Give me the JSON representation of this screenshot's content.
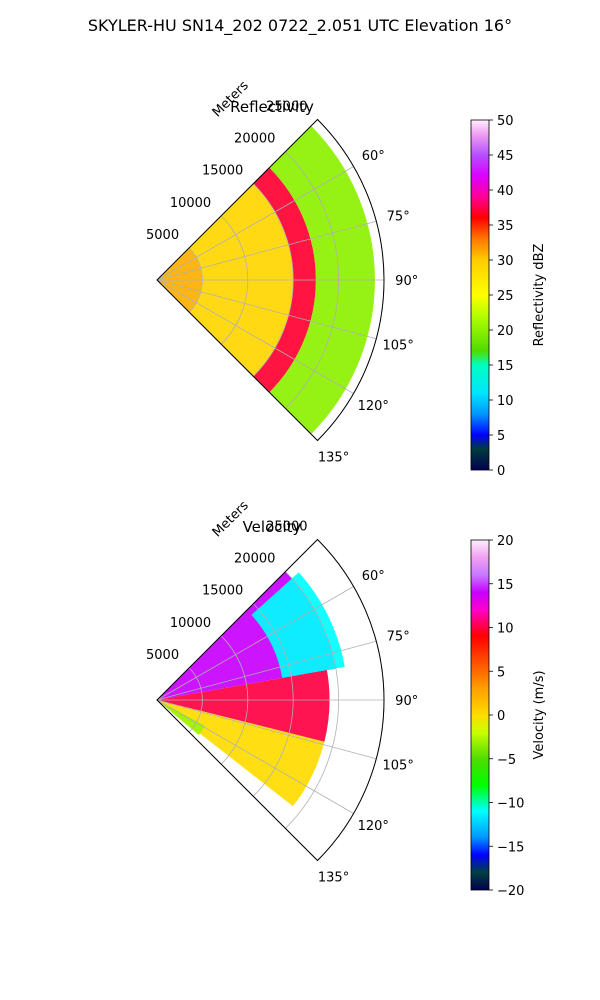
{
  "figure": {
    "title": "SKYLER-HU  SN14_202  0722_2.051 UTC Elevation 16°"
  },
  "chart_data": [
    {
      "type": "heatmap",
      "subtype": "polar-sector",
      "title": "Reflectivity",
      "range_axis_label": "Meters",
      "range_ticks": [
        5000,
        10000,
        15000,
        20000,
        25000
      ],
      "range_max": 25000,
      "azimuth_ticks": [
        "60°",
        "75°",
        "90°",
        "105°",
        "120°",
        "135°"
      ],
      "azimuth_tick_values": [
        60,
        75,
        90,
        105,
        120,
        135
      ],
      "azimuth_range": [
        45,
        135
      ],
      "grid": true,
      "colorbar": {
        "label": "Reflectivity dBZ",
        "min": 0,
        "max": 50,
        "ticks": [
          "0",
          "5",
          "10",
          "15",
          "20",
          "25",
          "30",
          "35",
          "40",
          "45",
          "50"
        ],
        "tick_values": [
          0,
          5,
          10,
          15,
          20,
          25,
          30,
          35,
          40,
          45,
          50
        ],
        "stops": [
          {
            "v": 0,
            "c": "#000050"
          },
          {
            "v": 3,
            "c": "#003c3c"
          },
          {
            "v": 5,
            "c": "#0000ff"
          },
          {
            "v": 8,
            "c": "#0096ff"
          },
          {
            "v": 11,
            "c": "#00e6ff"
          },
          {
            "v": 15,
            "c": "#00ffc0"
          },
          {
            "v": 17,
            "c": "#50dc00"
          },
          {
            "v": 22,
            "c": "#b4ff00"
          },
          {
            "v": 25,
            "c": "#ffff00"
          },
          {
            "v": 30,
            "c": "#ffcc00"
          },
          {
            "v": 33,
            "c": "#ff7800"
          },
          {
            "v": 36,
            "c": "#ff0000"
          },
          {
            "v": 39,
            "c": "#ff0096"
          },
          {
            "v": 42,
            "c": "#dc00ff"
          },
          {
            "v": 45,
            "c": "#b450ff"
          },
          {
            "v": 48,
            "c": "#f0a0f0"
          },
          {
            "v": 50,
            "c": "#fff0ff"
          }
        ]
      },
      "field_bands": [
        {
          "r": [
            0,
            5000
          ],
          "value": 31
        },
        {
          "r": [
            5000,
            15000
          ],
          "value": 29
        },
        {
          "r": [
            15000,
            17500
          ],
          "value": 37
        },
        {
          "r": [
            17500,
            24000
          ],
          "value": 20
        }
      ]
    },
    {
      "type": "heatmap",
      "subtype": "polar-sector",
      "title": "Velocity",
      "range_axis_label": "Meters",
      "range_ticks": [
        5000,
        10000,
        15000,
        20000,
        25000
      ],
      "range_max": 25000,
      "azimuth_ticks": [
        "60°",
        "75°",
        "90°",
        "105°",
        "120°",
        "135°"
      ],
      "azimuth_tick_values": [
        60,
        75,
        90,
        105,
        120,
        135
      ],
      "azimuth_range": [
        45,
        135
      ],
      "grid": true,
      "colorbar": {
        "label": "Velocity (m/s)",
        "min": -20,
        "max": 20,
        "ticks": [
          "−20",
          "−15",
          "−10",
          "−5",
          "0",
          "5",
          "10",
          "15",
          "20"
        ],
        "tick_values": [
          -20,
          -15,
          -10,
          -5,
          0,
          5,
          10,
          15,
          20
        ],
        "stops": [
          {
            "v": -20,
            "c": "#000050"
          },
          {
            "v": -18,
            "c": "#004040"
          },
          {
            "v": -16,
            "c": "#0000ff"
          },
          {
            "v": -14,
            "c": "#0096ff"
          },
          {
            "v": -11,
            "c": "#00ffff"
          },
          {
            "v": -8,
            "c": "#00ff00"
          },
          {
            "v": -5,
            "c": "#50dc00"
          },
          {
            "v": -2,
            "c": "#c8ff00"
          },
          {
            "v": 0,
            "c": "#ffdc00"
          },
          {
            "v": 3,
            "c": "#ffa000"
          },
          {
            "v": 6,
            "c": "#ff5000"
          },
          {
            "v": 9,
            "c": "#ff0000"
          },
          {
            "v": 12,
            "c": "#ff00c8"
          },
          {
            "v": 14,
            "c": "#c800ff"
          },
          {
            "v": 16,
            "c": "#c878ff"
          },
          {
            "v": 18,
            "c": "#f0a0f0"
          },
          {
            "v": 20,
            "c": "#fff0ff"
          }
        ]
      },
      "field_regions": [
        {
          "r": [
            0,
            20000
          ],
          "az": [
            45,
            80
          ],
          "value": 14
        },
        {
          "r": [
            0,
            19000
          ],
          "az": [
            80,
            104
          ],
          "value": 10
        },
        {
          "r": [
            0,
            19000
          ],
          "az": [
            104,
            128
          ],
          "value": 0
        },
        {
          "r": [
            14000,
            21000
          ],
          "az": [
            48,
            80
          ],
          "value": -11
        },
        {
          "r": [
            0,
            6000
          ],
          "az": [
            118,
            130
          ],
          "value": -3
        }
      ]
    }
  ]
}
